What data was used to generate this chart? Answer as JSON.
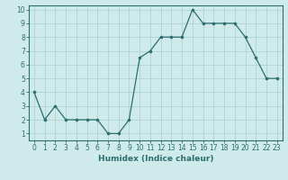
{
  "x": [
    0,
    1,
    2,
    3,
    4,
    5,
    6,
    7,
    8,
    9,
    10,
    11,
    12,
    13,
    14,
    15,
    16,
    17,
    18,
    19,
    20,
    21,
    22,
    23
  ],
  "y": [
    4,
    2,
    3,
    2,
    2,
    2,
    2,
    1,
    1,
    2,
    6.5,
    7,
    8,
    8,
    8,
    10,
    9,
    9,
    9,
    9,
    8,
    6.5,
    5,
    5
  ],
  "line_color": "#2d6e6e",
  "marker_color": "#2d6e6e",
  "bg_color": "#ceeaea",
  "grid_color": "#aed4d4",
  "xlabel": "Humidex (Indice chaleur)",
  "ylim_min": 1,
  "ylim_max": 10,
  "xlim_min": 0,
  "xlim_max": 23,
  "yticks": [
    1,
    2,
    3,
    4,
    5,
    6,
    7,
    8,
    9,
    10
  ],
  "xticks": [
    0,
    1,
    2,
    3,
    4,
    5,
    6,
    7,
    8,
    9,
    10,
    11,
    12,
    13,
    14,
    15,
    16,
    17,
    18,
    19,
    20,
    21,
    22,
    23
  ],
  "tick_label_fontsize": 5.5,
  "xlabel_fontsize": 6.5,
  "marker_size": 2.2,
  "linewidth": 0.9
}
